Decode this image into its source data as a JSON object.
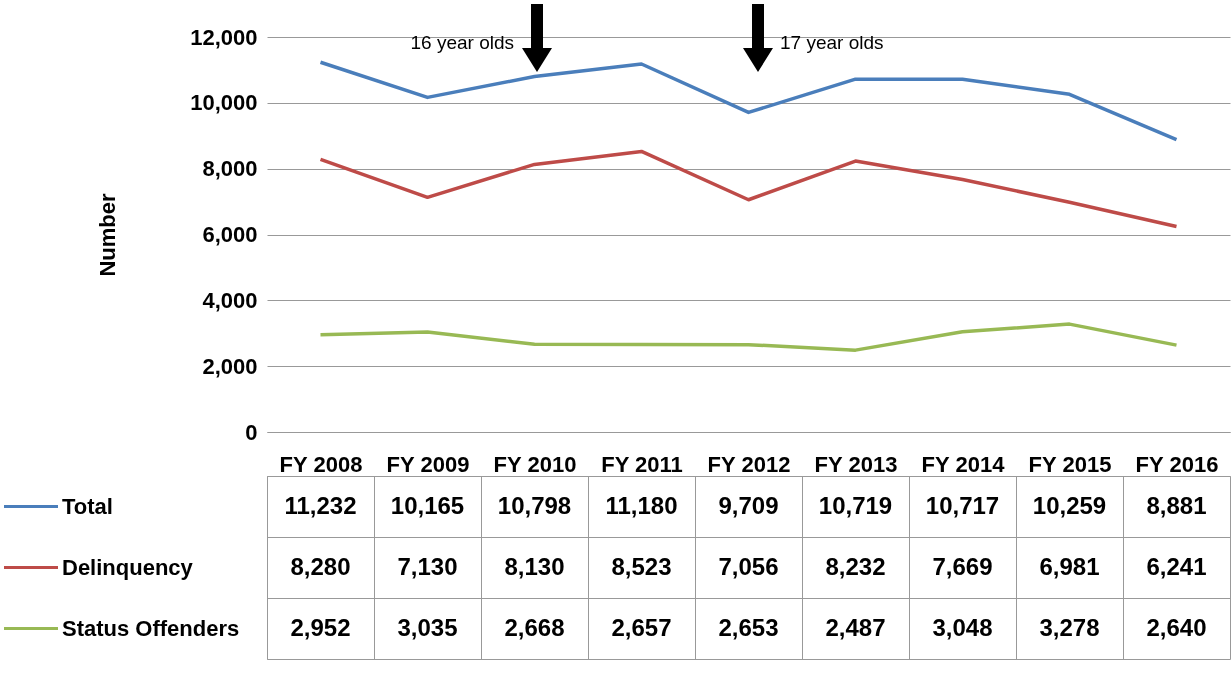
{
  "chart_data": {
    "type": "line",
    "ylabel": "Number",
    "categories": [
      "FY 2008",
      "FY 2009",
      "FY 2010",
      "FY 2011",
      "FY 2012",
      "FY 2013",
      "FY 2014",
      "FY 2015",
      "FY 2016"
    ],
    "series": [
      {
        "name": "Total",
        "color": "#4a7ebb",
        "values": [
          11232,
          10165,
          10798,
          11180,
          9709,
          10719,
          10717,
          10259,
          8881
        ],
        "value_labels": [
          "11,232",
          "10,165",
          "10,798",
          "11,180",
          "9,709",
          "10,719",
          "10,717",
          "10,259",
          "8,881"
        ]
      },
      {
        "name": "Delinquency",
        "color": "#be4b48",
        "values": [
          8280,
          7130,
          8130,
          8523,
          7056,
          8232,
          7669,
          6981,
          6241
        ],
        "value_labels": [
          "8,280",
          "7,130",
          "8,130",
          "8,523",
          "7,056",
          "8,232",
          "7,669",
          "6,981",
          "6,241"
        ]
      },
      {
        "name": "Status Offenders",
        "color": "#98b954",
        "values": [
          2952,
          3035,
          2668,
          2657,
          2653,
          2487,
          3048,
          3278,
          2640
        ],
        "value_labels": [
          "2,952",
          "3,035",
          "2,668",
          "2,657",
          "2,653",
          "2,487",
          "3,048",
          "3,278",
          "2,640"
        ]
      }
    ],
    "ylim": [
      0,
      12000
    ],
    "yticks": [
      0,
      {
        "value": 2000,
        "label": "2,000"
      },
      {
        "value": 4000,
        "label": "4,000"
      },
      {
        "value": 6000,
        "label": "6,000"
      },
      {
        "value": 8000,
        "label": "8,000"
      },
      {
        "value": 10000,
        "label": "10,000"
      },
      {
        "value": 12000,
        "label": "12,000"
      }
    ],
    "grid": "y",
    "legend": "bottom",
    "marker": "none",
    "line_style": "solid",
    "annotations": [
      "16 year olds",
      "17 year olds"
    ]
  }
}
